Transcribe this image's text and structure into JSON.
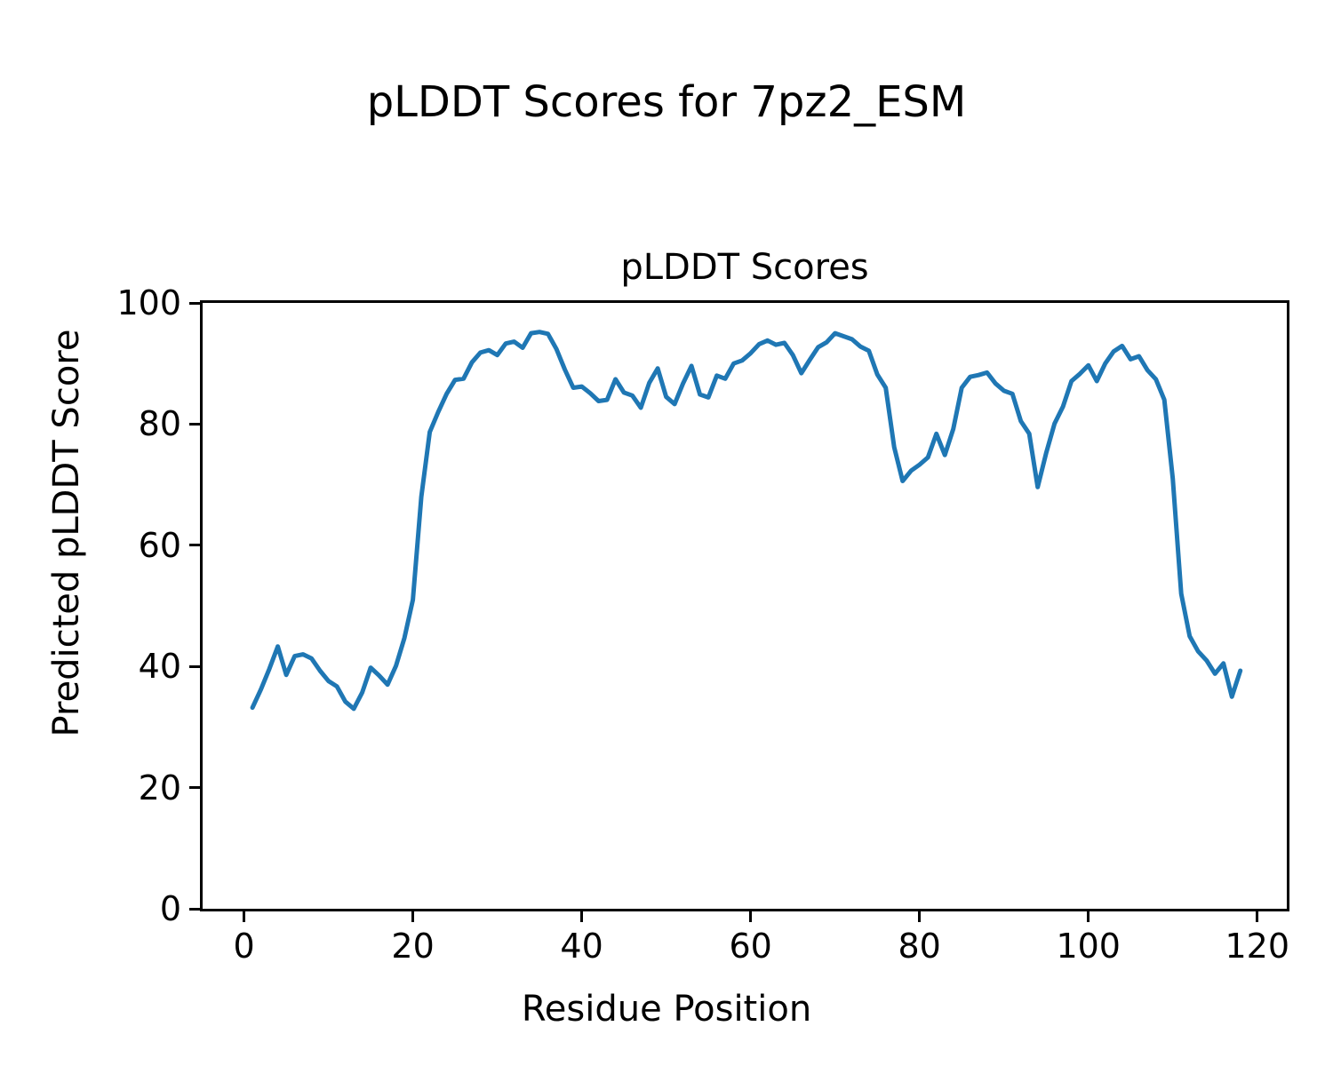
{
  "figure": {
    "suptitle": "pLDDT Scores for 7pz2_ESM",
    "axes_title": "pLDDT Scores",
    "xlabel": "Residue Position",
    "ylabel": "Predicted pLDDT Score",
    "background_color": "#ffffff",
    "text_color": "#000000",
    "spine_color": "#000000"
  },
  "chart_data": {
    "type": "line",
    "title": "pLDDT Scores",
    "suptitle": "pLDDT Scores for 7pz2_ESM",
    "xlabel": "Residue Position",
    "ylabel": "Predicted pLDDT Score",
    "xlim": [
      -4.9,
      123.5
    ],
    "ylim": [
      0,
      100
    ],
    "xticks": [
      0,
      20,
      40,
      60,
      80,
      100,
      120
    ],
    "yticks": [
      0,
      20,
      40,
      60,
      80,
      100
    ],
    "grid": false,
    "legend": "none",
    "series": [
      {
        "name": "pLDDT",
        "color": "#1f77b4",
        "line_width": 5,
        "x": [
          1,
          2,
          3,
          4,
          5,
          6,
          7,
          8,
          9,
          10,
          11,
          12,
          13,
          14,
          15,
          16,
          17,
          18,
          19,
          20,
          21,
          22,
          23,
          24,
          25,
          26,
          27,
          28,
          29,
          30,
          31,
          32,
          33,
          34,
          35,
          36,
          37,
          38,
          39,
          40,
          41,
          42,
          43,
          44,
          45,
          46,
          47,
          48,
          49,
          50,
          51,
          52,
          53,
          54,
          55,
          56,
          57,
          58,
          59,
          60,
          61,
          62,
          63,
          64,
          65,
          66,
          67,
          68,
          69,
          70,
          71,
          72,
          73,
          74,
          75,
          76,
          77,
          78,
          79,
          80,
          81,
          82,
          83,
          84,
          85,
          86,
          87,
          88,
          89,
          90,
          91,
          92,
          93,
          94,
          95,
          96,
          97,
          98,
          99,
          100,
          101,
          102,
          103,
          104,
          105,
          106,
          107,
          108,
          109,
          110,
          111,
          112,
          113,
          114,
          115,
          116,
          117,
          118
        ],
        "y": [
          33.2,
          36.2,
          39.6,
          43.3,
          38.6,
          41.7,
          42.0,
          41.3,
          39.3,
          37.6,
          36.7,
          34.2,
          33.0,
          35.7,
          39.8,
          38.5,
          37.0,
          40.1,
          44.7,
          51.0,
          68.0,
          78.7,
          82.0,
          85.0,
          87.3,
          87.5,
          90.2,
          91.8,
          92.2,
          91.4,
          93.3,
          93.6,
          92.6,
          95.0,
          95.2,
          94.9,
          92.4,
          89.0,
          86.0,
          86.2,
          85.1,
          83.8,
          84.0,
          87.4,
          85.2,
          84.7,
          82.7,
          86.8,
          89.2,
          84.5,
          83.3,
          86.7,
          89.6,
          84.9,
          84.4,
          88.0,
          87.5,
          90.0,
          90.5,
          91.7,
          93.2,
          93.8,
          93.1,
          93.4,
          91.4,
          88.4,
          90.6,
          92.7,
          93.5,
          95.0,
          94.5,
          94.0,
          92.8,
          92.1,
          88.2,
          86.0,
          76.2,
          70.6,
          72.3,
          73.3,
          74.5,
          78.4,
          74.9,
          79.2,
          86.0,
          87.8,
          88.1,
          88.5,
          86.7,
          85.5,
          85.0,
          80.5,
          78.4,
          69.6,
          75.2,
          80.1,
          82.9,
          87.1,
          88.3,
          89.7,
          87.1,
          90.0,
          92.0,
          92.9,
          90.7,
          91.2,
          88.9,
          87.4,
          84.0,
          71.0,
          52.0,
          45.0,
          42.5,
          41.0,
          38.8,
          40.5,
          35.0,
          39.3
        ]
      }
    ]
  }
}
